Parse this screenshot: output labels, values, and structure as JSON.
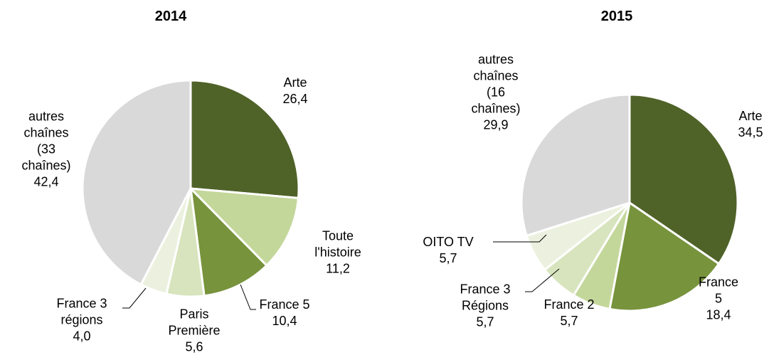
{
  "chart_data": [
    {
      "type": "pie",
      "title": "2014",
      "categories": [
        "Arte",
        "Toute\nl'histoire",
        "France 5",
        "Paris\nPremière",
        "France 3\nrégions",
        "autres\nchaînes\n(33\nchaînes)"
      ],
      "values": [
        26.4,
        11.2,
        10.4,
        5.6,
        4.0,
        42.4
      ],
      "value_labels": [
        "26,4",
        "11,2",
        "10,4",
        "5,6",
        "4,0",
        "42,4"
      ],
      "colors": [
        "#4f6228",
        "#c4d79b",
        "#77933c",
        "#d7e4bd",
        "#ebf1de",
        "#d9d9d9"
      ]
    },
    {
      "type": "pie",
      "title": "2015",
      "categories": [
        "Arte",
        "France 5",
        "France 2",
        "France 3\nRégions",
        "OITO TV",
        "autres\nchaînes\n(16\nchaînes)"
      ],
      "values": [
        34.5,
        18.4,
        5.7,
        5.7,
        5.7,
        29.9
      ],
      "value_labels": [
        "34,5",
        "18,4",
        "5,7",
        "5,7",
        "5,7",
        "29,9"
      ],
      "colors": [
        "#4f6228",
        "#77933c",
        "#c4d79b",
        "#d7e4bd",
        "#ebf1de",
        "#d9d9d9"
      ]
    }
  ]
}
